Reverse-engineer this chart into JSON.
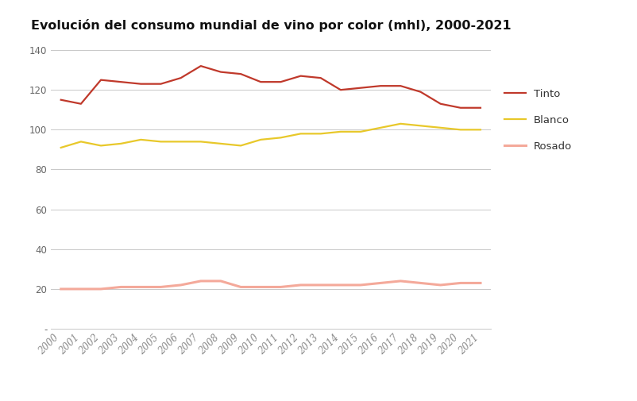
{
  "title": "Evolución del consumo mundial de vino por color (mhl), 2000-2021",
  "years": [
    2000,
    2001,
    2002,
    2003,
    2004,
    2005,
    2006,
    2007,
    2008,
    2009,
    2010,
    2011,
    2012,
    2013,
    2014,
    2015,
    2016,
    2017,
    2018,
    2019,
    2020,
    2021
  ],
  "tinto": [
    115,
    113,
    125,
    124,
    123,
    123,
    126,
    132,
    129,
    128,
    124,
    124,
    127,
    126,
    120,
    121,
    122,
    122,
    119,
    113,
    111,
    111
  ],
  "blanco": [
    91,
    94,
    92,
    93,
    95,
    94,
    94,
    94,
    93,
    92,
    95,
    96,
    98,
    98,
    99,
    99,
    101,
    103,
    102,
    101,
    100,
    100
  ],
  "rosado": [
    20,
    20,
    20,
    21,
    21,
    21,
    22,
    24,
    24,
    21,
    21,
    21,
    22,
    22,
    22,
    22,
    23,
    24,
    23,
    22,
    23,
    23
  ],
  "tinto_color": "#c0392b",
  "blanco_color": "#e8c82a",
  "rosado_color": "#f4a99a",
  "ylim": [
    0,
    145
  ],
  "yticks": [
    0,
    20,
    40,
    60,
    80,
    100,
    120,
    140
  ],
  "ytick_labels": [
    "-",
    "20",
    "40",
    "60",
    "80",
    "100",
    "120",
    "140"
  ],
  "background_color": "#ffffff",
  "grid_color": "#c8c8c8",
  "legend_labels": [
    "Tinto",
    "Blanco",
    "Rosado"
  ],
  "title_fontsize": 11.5,
  "tick_fontsize": 8.5,
  "legend_fontsize": 9.5
}
